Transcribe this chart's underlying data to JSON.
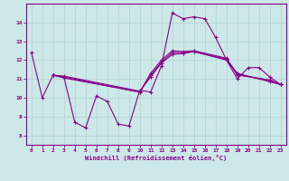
{
  "title": "",
  "xlabel": "Windchill (Refroidissement éolien,°C)",
  "ylabel": "",
  "background_color": "#cce8e8",
  "line_color": "#880088",
  "xlim": [
    -0.5,
    23.5
  ],
  "ylim": [
    7.5,
    15.0
  ],
  "yticks": [
    8,
    9,
    10,
    11,
    12,
    13,
    14
  ],
  "xticks": [
    0,
    1,
    2,
    3,
    4,
    5,
    6,
    7,
    8,
    9,
    10,
    11,
    12,
    13,
    14,
    15,
    16,
    17,
    18,
    19,
    20,
    21,
    22,
    23
  ],
  "series": [
    [
      12.4,
      10.0,
      11.2,
      11.1,
      8.7,
      8.4,
      10.1,
      9.8,
      8.6,
      8.5,
      10.4,
      10.3,
      11.7,
      14.5,
      14.2,
      14.3,
      14.2,
      13.2,
      12.0,
      11.0,
      11.6,
      11.6,
      11.1,
      10.7
    ],
    [
      null,
      null,
      11.2,
      11.15,
      null,
      null,
      null,
      null,
      null,
      null,
      10.35,
      11.1,
      11.85,
      12.3,
      12.35,
      12.45,
      null,
      null,
      12.05,
      11.3,
      null,
      null,
      10.85,
      10.7
    ],
    [
      null,
      null,
      11.2,
      11.1,
      null,
      null,
      null,
      null,
      null,
      null,
      10.3,
      11.2,
      11.9,
      12.4,
      12.4,
      12.45,
      null,
      null,
      12.0,
      11.25,
      null,
      null,
      10.9,
      10.7
    ],
    [
      null,
      null,
      11.2,
      11.05,
      null,
      null,
      null,
      null,
      null,
      null,
      10.3,
      11.3,
      12.0,
      12.5,
      12.45,
      12.5,
      null,
      null,
      12.1,
      11.2,
      null,
      null,
      10.95,
      10.7
    ]
  ]
}
